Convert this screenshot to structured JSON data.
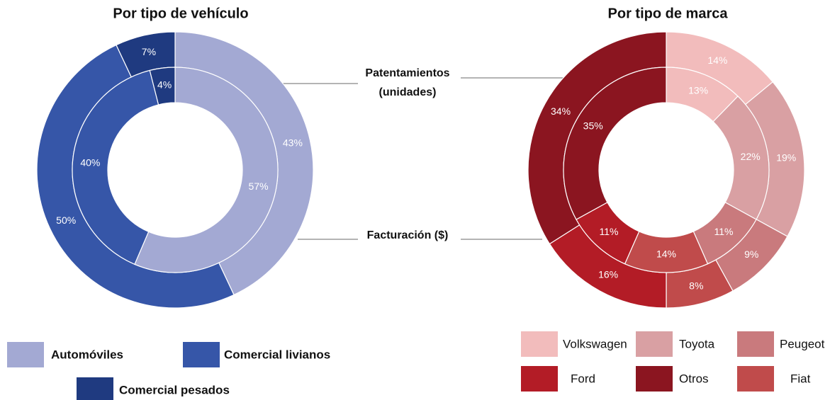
{
  "chart_data": [
    {
      "type": "pie",
      "title": "Por tipo de vehículo",
      "categories": [
        "Automóviles",
        "Comercial livianos",
        "Comercial pesados"
      ],
      "colors": [
        "#a3a9d3",
        "#3656a8",
        "#1f3a80"
      ],
      "series": [
        {
          "name": "Patentamientos (unidades)",
          "values": [
            43,
            50,
            7
          ],
          "value_labels": [
            "43%",
            "50%",
            "7%"
          ]
        },
        {
          "name": "Facturación ($)",
          "values": [
            57,
            40,
            4
          ],
          "value_labels": [
            "57%",
            "40%",
            "4%"
          ]
        }
      ]
    },
    {
      "type": "pie",
      "title": "Por tipo de marca",
      "categories": [
        "Volkswagen",
        "Toyota",
        "Peugeot",
        "Fiat",
        "Ford",
        "Otros"
      ],
      "colors": [
        "#f2bcbc",
        "#d9a0a3",
        "#c97a7d",
        "#c04b4b",
        "#b31c26",
        "#8b1520"
      ],
      "series": [
        {
          "values": [
            14,
            19,
            9,
            8,
            16,
            34
          ],
          "value_labels": [
            "14%",
            "19%",
            "9%",
            "8%",
            "16%",
            "34%"
          ]
        },
        {
          "values": [
            13,
            22,
            11,
            14,
            11,
            35
          ],
          "value_labels": [
            "13%",
            "22%",
            "11%",
            "14%",
            "11%",
            "35%"
          ]
        }
      ]
    }
  ]
}
